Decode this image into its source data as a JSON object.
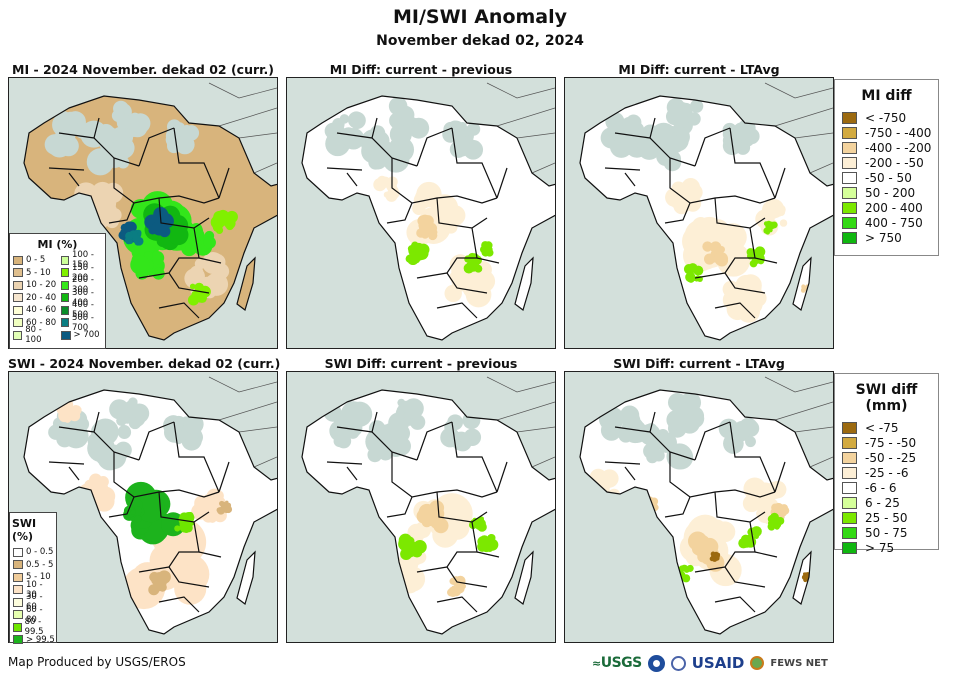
{
  "title": "MI/SWI Anomaly",
  "subtitle": "November dekad 02, 2024",
  "colors": {
    "ocean": "#d3e0db",
    "land_none": "#ffffff",
    "border": "#111111"
  },
  "panels": [
    {
      "id": "mi-current",
      "title": "MI - 2024 November. dekad 02 (curr.)",
      "scheme": "mi"
    },
    {
      "id": "mi-diff-prev",
      "title": "MI Diff: current - previous",
      "scheme": "mi-diff-prev"
    },
    {
      "id": "mi-diff-lta",
      "title": "MI Diff: current - LTAvg",
      "scheme": "mi-diff-lta"
    },
    {
      "id": "swi-current",
      "title": "SWI - 2024 November. dekad 02 (curr.)",
      "scheme": "swi"
    },
    {
      "id": "swi-diff-prev",
      "title": "SWI Diff: current - previous",
      "scheme": "swi-diff-prev"
    },
    {
      "id": "swi-diff-lta",
      "title": "SWI Diff: current - LTAvg",
      "scheme": "swi-diff-lta"
    }
  ],
  "legends": {
    "mi": {
      "title": "MI (%)",
      "items": [
        {
          "label": "0 - 5",
          "color": "#d8b47c"
        },
        {
          "label": "5 - 10",
          "color": "#dfbf8e"
        },
        {
          "label": "10 - 20",
          "color": "#ecd4b2"
        },
        {
          "label": "20 - 40",
          "color": "#f6e6cf"
        },
        {
          "label": "40 - 60",
          "color": "#ffffd6"
        },
        {
          "label": "60 - 80",
          "color": "#f0ffc0"
        },
        {
          "label": "80 - 100",
          "color": "#e2ffb6"
        },
        {
          "label": "100 - 150",
          "color": "#ccff99"
        },
        {
          "label": "150 - 200",
          "color": "#80f000"
        },
        {
          "label": "200 - 300",
          "color": "#33e61a"
        },
        {
          "label": "300 - 400",
          "color": "#11b711"
        },
        {
          "label": "400 - 500",
          "color": "#0b8c2a"
        },
        {
          "label": "500 - 700",
          "color": "#0a7d82"
        },
        {
          "label": "> 700",
          "color": "#0c5a80"
        }
      ]
    },
    "swi": {
      "title": "SWI (%)",
      "items": [
        {
          "label": "0 - 0.5",
          "color": "#ffffff"
        },
        {
          "label": "0.5 - 5",
          "color": "#d8b47c"
        },
        {
          "label": "5 - 10",
          "color": "#f0cc9a"
        },
        {
          "label": "10 - 30",
          "color": "#fde3c6"
        },
        {
          "label": "30 - 60",
          "color": "#fdfddd"
        },
        {
          "label": "60 - 80",
          "color": "#e6ffb0"
        },
        {
          "label": "80 - 99.5",
          "color": "#6ee600"
        },
        {
          "label": "> 99.5",
          "color": "#1db31d"
        }
      ]
    },
    "mi_diff": {
      "title": "MI diff",
      "items": [
        {
          "label": "< -750",
          "color": "#9c6a10"
        },
        {
          "label": "-750 - -400",
          "color": "#d2aa40"
        },
        {
          "label": "-400 - -200",
          "color": "#f3d39e"
        },
        {
          "label": "-200 - -50",
          "color": "#fdefd6"
        },
        {
          "label": "-50 - 50",
          "color": "#ffffff"
        },
        {
          "label": "50 - 200",
          "color": "#d5ff9a"
        },
        {
          "label": "200 - 400",
          "color": "#7ce800"
        },
        {
          "label": "400 - 750",
          "color": "#33d914"
        },
        {
          "label": "> 750",
          "color": "#10b710"
        }
      ]
    },
    "swi_diff": {
      "title": "SWI diff (mm)",
      "items": [
        {
          "label": "< -75",
          "color": "#9c6a10"
        },
        {
          "label": "-75 - -50",
          "color": "#d2aa40"
        },
        {
          "label": "-50 - -25",
          "color": "#f3d39e"
        },
        {
          "label": "-25 - -6",
          "color": "#fdefd6"
        },
        {
          "label": "-6 - 6",
          "color": "#ffffff"
        },
        {
          "label": "6 - 25",
          "color": "#d5ff9a"
        },
        {
          "label": "25 - 50",
          "color": "#7ce800"
        },
        {
          "label": "50 - 75",
          "color": "#33d914"
        },
        {
          "label": "> 75",
          "color": "#10b710"
        }
      ]
    }
  },
  "footer": {
    "credit": "Map Produced by USGS/EROS",
    "logos": [
      "USGS",
      "NOAA",
      "USAID",
      "FEWS NET"
    ]
  }
}
